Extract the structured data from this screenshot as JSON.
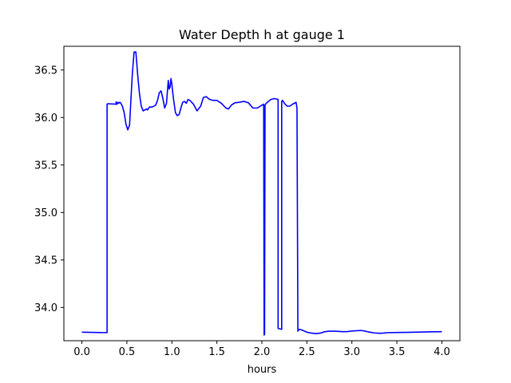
{
  "chart_data": {
    "type": "line",
    "title": "Water Depth h at gauge 1",
    "xlabel": "hours",
    "ylabel": "",
    "xlim": [
      -0.2,
      4.2
    ],
    "ylim": [
      33.65,
      36.75
    ],
    "xticks": [
      0.0,
      0.5,
      1.0,
      1.5,
      2.0,
      2.5,
      3.0,
      3.5,
      4.0
    ],
    "xtick_labels": [
      "0.0",
      "0.5",
      "1.0",
      "1.5",
      "2.0",
      "2.5",
      "3.0",
      "3.5",
      "4.0"
    ],
    "yticks": [
      34.0,
      34.5,
      35.0,
      35.5,
      36.0,
      36.5
    ],
    "ytick_labels": [
      "34.0",
      "34.5",
      "35.0",
      "35.5",
      "36.0",
      "36.5"
    ],
    "grid": false,
    "series": [
      {
        "color": "#0000ff",
        "x": [
          0.0,
          0.28,
          0.28,
          0.29,
          0.38,
          0.38,
          0.39,
          0.4,
          0.41,
          0.42,
          0.43,
          0.45,
          0.47,
          0.49,
          0.51,
          0.53,
          0.54,
          0.56,
          0.58,
          0.6,
          0.62,
          0.64,
          0.66,
          0.68,
          0.7,
          0.72,
          0.73,
          0.75,
          0.78,
          0.82,
          0.84,
          0.86,
          0.88,
          0.9,
          0.92,
          0.94,
          0.96,
          0.97,
          0.98,
          0.99,
          1.0,
          1.01,
          1.02,
          1.04,
          1.06,
          1.08,
          1.1,
          1.12,
          1.14,
          1.16,
          1.18,
          1.2,
          1.24,
          1.28,
          1.32,
          1.35,
          1.38,
          1.42,
          1.46,
          1.5,
          1.55,
          1.6,
          1.63,
          1.66,
          1.7,
          1.75,
          1.8,
          1.85,
          1.9,
          1.95,
          2.0,
          2.02,
          2.025,
          2.03,
          2.035,
          2.04,
          2.06,
          2.1,
          2.14,
          2.18,
          2.18,
          2.22,
          2.22,
          2.23,
          2.25,
          2.28,
          2.31,
          2.34,
          2.38,
          2.39,
          2.4,
          2.4,
          2.42,
          2.45,
          2.5,
          2.55,
          2.6,
          2.65,
          2.7,
          2.75,
          2.8,
          2.85,
          2.9,
          2.95,
          3.0,
          3.05,
          3.1,
          3.15,
          3.2,
          3.25,
          3.3,
          3.35,
          3.4,
          3.5,
          3.6,
          3.7,
          3.8,
          3.9,
          4.0
        ],
        "y": [
          33.74,
          33.735,
          36.14,
          36.145,
          36.14,
          36.165,
          36.14,
          36.16,
          36.15,
          36.16,
          36.155,
          36.12,
          36.05,
          35.93,
          35.87,
          35.92,
          36.1,
          36.45,
          36.69,
          36.69,
          36.45,
          36.25,
          36.12,
          36.07,
          36.08,
          36.09,
          36.08,
          36.11,
          36.11,
          36.13,
          36.18,
          36.26,
          36.28,
          36.2,
          36.1,
          36.15,
          36.39,
          36.3,
          36.32,
          36.41,
          36.35,
          36.26,
          36.18,
          36.05,
          36.02,
          36.03,
          36.1,
          36.16,
          36.17,
          36.15,
          36.19,
          36.18,
          36.14,
          36.07,
          36.12,
          36.21,
          36.22,
          36.19,
          36.18,
          36.18,
          36.15,
          36.1,
          36.09,
          36.13,
          36.155,
          36.16,
          36.17,
          36.155,
          36.1,
          36.1,
          36.13,
          36.14,
          33.71,
          33.72,
          36.13,
          36.14,
          36.16,
          36.19,
          36.2,
          36.19,
          33.78,
          33.77,
          36.17,
          36.18,
          36.15,
          36.12,
          36.12,
          36.14,
          36.16,
          36.1,
          33.75,
          33.76,
          33.77,
          33.76,
          33.74,
          33.73,
          33.725,
          33.73,
          33.745,
          33.75,
          33.75,
          33.748,
          33.745,
          33.746,
          33.752,
          33.755,
          33.758,
          33.75,
          33.74,
          33.732,
          33.728,
          33.73,
          33.735,
          33.737,
          33.738,
          33.74,
          33.742,
          33.744,
          33.745
        ]
      }
    ]
  }
}
